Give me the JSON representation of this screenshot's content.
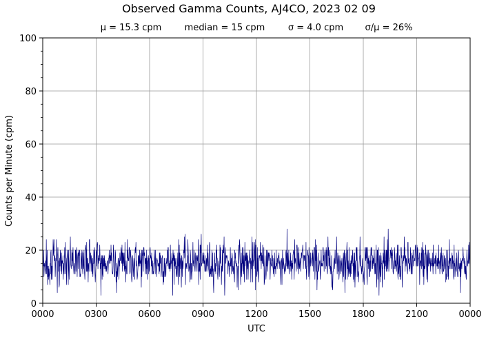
{
  "chart_data": {
    "type": "line",
    "title": "Observed Gamma Counts, AJ4CO, 2023 02 09",
    "stats": {
      "mean": "μ = 15.3 cpm",
      "median": "median = 15 cpm",
      "sigma": "σ = 4.0 cpm",
      "ratio": "σ/μ = 26%"
    },
    "xlabel": "UTC",
    "ylabel": "Counts per Minute (cpm)",
    "xlim": [
      0,
      1440
    ],
    "ylim": [
      0,
      100
    ],
    "x_ticks": [
      {
        "value": 0,
        "label": "0000"
      },
      {
        "value": 180,
        "label": "0300"
      },
      {
        "value": 360,
        "label": "0600"
      },
      {
        "value": 540,
        "label": "0900"
      },
      {
        "value": 720,
        "label": "1200"
      },
      {
        "value": 900,
        "label": "1500"
      },
      {
        "value": 1080,
        "label": "1800"
      },
      {
        "value": 1260,
        "label": "2100"
      },
      {
        "value": 1440,
        "label": "0000"
      }
    ],
    "y_ticks": [
      {
        "value": 0,
        "label": "0"
      },
      {
        "value": 20,
        "label": "20"
      },
      {
        "value": 40,
        "label": "40"
      },
      {
        "value": 60,
        "label": "60"
      },
      {
        "value": 80,
        "label": "80"
      },
      {
        "value": 100,
        "label": "100"
      }
    ],
    "y_minor_step": 5,
    "grid": true,
    "line_color": "#00007f",
    "grid_color": "#999999",
    "series": [
      {
        "sampling": "1 value per minute, 0000 to 2400 UTC",
        "mean": 15.3,
        "sigma": 4.0,
        "min": 3,
        "max": 29
      }
    ]
  }
}
